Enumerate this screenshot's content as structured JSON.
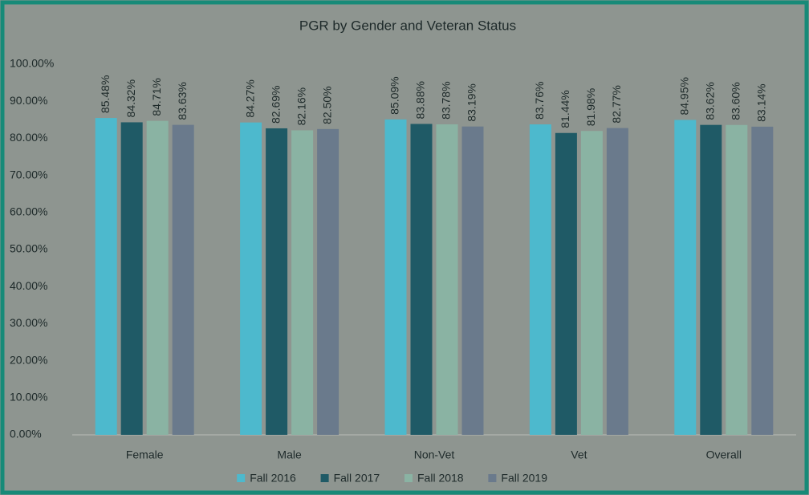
{
  "chart_data": {
    "type": "bar",
    "title": "PGR by Gender and Veteran Status",
    "categories": [
      "Female",
      "Male",
      "Non-Vet",
      "Vet",
      "Overall"
    ],
    "series": [
      {
        "name": "Fall 2016",
        "color": "#4db9cd",
        "values": [
          85.48,
          84.27,
          85.09,
          83.76,
          84.95
        ],
        "value_labels": [
          "85.48%",
          "84.27%",
          "85.09%",
          "83.76%",
          "84.95%"
        ]
      },
      {
        "name": "Fall 2017",
        "color": "#1f5a66",
        "values": [
          84.32,
          82.69,
          83.88,
          81.44,
          83.62
        ],
        "value_labels": [
          "84.32%",
          "82.69%",
          "83.88%",
          "81.44%",
          "83.62%"
        ]
      },
      {
        "name": "Fall 2018",
        "color": "#8ab3a3",
        "values": [
          84.71,
          82.16,
          83.78,
          81.98,
          83.6
        ],
        "value_labels": [
          "84.71%",
          "82.16%",
          "83.78%",
          "81.98%",
          "83.60%"
        ]
      },
      {
        "name": "Fall 2019",
        "color": "#6a7a8c",
        "values": [
          83.63,
          82.5,
          83.19,
          82.77,
          83.14
        ],
        "value_labels": [
          "83.63%",
          "82.50%",
          "83.19%",
          "82.77%",
          "83.14%"
        ]
      }
    ],
    "ylim": [
      0,
      100
    ],
    "yticks": [
      {
        "value": 0,
        "label": "0.00%"
      },
      {
        "value": 10,
        "label": "10.00%"
      },
      {
        "value": 20,
        "label": "20.00%"
      },
      {
        "value": 30,
        "label": "30.00%"
      },
      {
        "value": 40,
        "label": "40.00%"
      },
      {
        "value": 50,
        "label": "50.00%"
      },
      {
        "value": 60,
        "label": "60.00%"
      },
      {
        "value": 70,
        "label": "70.00%"
      },
      {
        "value": 80,
        "label": "80.00%"
      },
      {
        "value": 90,
        "label": "90.00%"
      },
      {
        "value": 100,
        "label": "100.00%"
      }
    ],
    "legend": "bottom"
  }
}
